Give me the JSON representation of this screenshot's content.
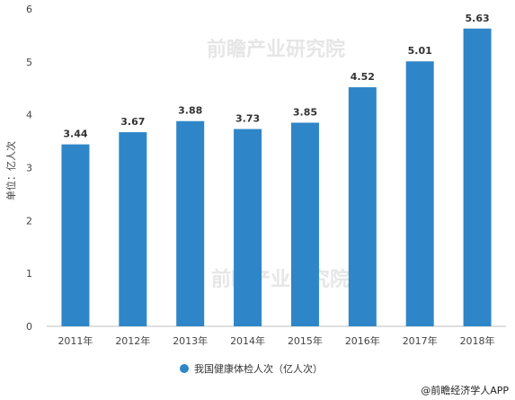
{
  "chart_data": {
    "type": "bar",
    "categories": [
      "2011年",
      "2012年",
      "2013年",
      "2014年",
      "2015年",
      "2016年",
      "2017年",
      "2018年"
    ],
    "series": [
      {
        "name": "我国健康体检人次（亿人次）",
        "values": [
          3.44,
          3.67,
          3.88,
          3.73,
          3.85,
          4.52,
          5.01,
          5.63
        ]
      }
    ],
    "data_labels": [
      "3.44",
      "3.67",
      "3.88",
      "3.73",
      "3.85",
      "4.52",
      "5.01",
      "5.63"
    ],
    "ylabel": "单位：亿人次",
    "ylim": [
      0,
      6
    ],
    "yticks": [
      "0",
      "1",
      "2",
      "3",
      "4",
      "5",
      "6"
    ],
    "grid": false,
    "legend_position": "bottom",
    "colors": {
      "bar": "#2E86C8",
      "axis": "#bfbfbf"
    }
  },
  "watermark": "前瞻产业研究院",
  "credit": "@前瞻经济学人APP"
}
